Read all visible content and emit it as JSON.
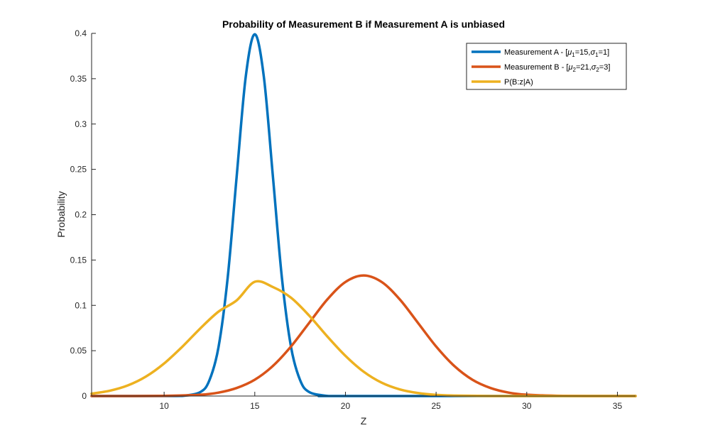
{
  "chart_data": {
    "type": "line",
    "title": "Probability of Measurement B if Measurement A is unbiased",
    "xlabel": "Z",
    "ylabel": "Probability",
    "xlim": [
      6,
      36
    ],
    "ylim": [
      0,
      0.4
    ],
    "xticks": [
      10,
      15,
      20,
      25,
      30,
      35
    ],
    "xtick_labels": [
      "10",
      "15",
      "20",
      "25",
      "30",
      "35"
    ],
    "yticks": [
      0,
      0.05,
      0.1,
      0.15,
      0.2,
      0.25,
      0.3,
      0.35,
      0.4
    ],
    "ytick_labels": [
      "0",
      "0.05",
      "0.1",
      "0.15",
      "0.2",
      "0.25",
      "0.3",
      "0.35",
      "0.4"
    ],
    "grid": false,
    "legend_position": "top-right",
    "series": [
      {
        "name": "Measurement A - [μ1=15,σ1=1]",
        "legend": {
          "prefix": "Measurement A - [",
          "mu": "μ",
          "mu_sub": "1",
          "mu_val": "=15,",
          "sigma": "σ",
          "sigma_sub": "1",
          "sigma_val": "=1]"
        },
        "color": "#0072BD",
        "x": [
          6,
          10,
          11,
          12,
          12.5,
          13,
          13.5,
          14,
          14.5,
          15,
          15.5,
          16,
          16.5,
          17,
          17.5,
          18,
          19,
          20,
          36
        ],
        "y": [
          0,
          1.5e-06,
          0.000134,
          0.00443,
          0.0175,
          0.054,
          0.1295,
          0.242,
          0.352,
          0.399,
          0.352,
          0.242,
          0.1295,
          0.054,
          0.0175,
          0.00443,
          0.000134,
          1.5e-06,
          0
        ]
      },
      {
        "name": "Measurement B - [μ2=21,σ2=3]",
        "legend": {
          "prefix": "Measurement B - [",
          "mu": "μ",
          "mu_sub": "2",
          "mu_val": "=21,",
          "sigma": "σ",
          "sigma_sub": "2",
          "sigma_val": "=3]"
        },
        "color": "#D95319",
        "x": [
          6,
          8,
          10,
          12,
          13,
          14,
          15,
          16,
          17,
          18,
          19,
          20,
          21,
          22,
          23,
          24,
          25,
          26,
          27,
          28,
          29,
          30,
          32,
          34,
          36
        ],
        "y": [
          5e-07,
          1.21e-05,
          0.000159,
          0.00146,
          0.00379,
          0.00886,
          0.018,
          0.0332,
          0.0547,
          0.0807,
          0.1065,
          0.1258,
          0.133,
          0.1258,
          0.1065,
          0.0807,
          0.0547,
          0.0332,
          0.018,
          0.00886,
          0.00379,
          0.00146,
          0.000159,
          1.21e-05,
          5e-07
        ]
      },
      {
        "name": "P(B:z|A)",
        "legend": {
          "prefix": "P(B:z|A)"
        },
        "color": "#EDB120",
        "x": [
          6,
          7,
          8,
          9,
          10,
          11,
          12,
          13,
          14,
          15,
          16,
          17,
          18,
          19,
          20,
          21,
          22,
          23,
          24,
          25,
          26,
          28,
          30,
          33,
          36
        ],
        "y": [
          0.0026,
          0.0058,
          0.0117,
          0.0215,
          0.0359,
          0.0543,
          0.0747,
          0.0931,
          0.1055,
          0.126,
          0.1202,
          0.1084,
          0.0887,
          0.0657,
          0.0443,
          0.0269,
          0.0147,
          0.0073,
          0.0033,
          0.0013,
          0.00049,
          5e-05,
          3e-06,
          0,
          0
        ]
      }
    ]
  }
}
